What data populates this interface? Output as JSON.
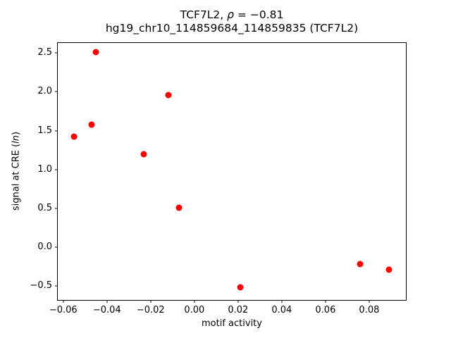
{
  "chart_data": {
    "type": "scatter",
    "title": "TCF7L2, ρ = −0.81",
    "title_parts": {
      "prefix": "TCF7L2, ",
      "rho": "ρ",
      "eq_suffix": " = −0.81"
    },
    "subtitle": "hg19_chr10_114859684_114859835 (TCF7L2)",
    "xlabel": "motif activity",
    "ylabel": "signal at CRE (ln)",
    "ylabel_parts": {
      "prefix": "signal at CRE (",
      "italic": "ln",
      "suffix": ")"
    },
    "marker": "circle",
    "marker_color": "#ff0000",
    "axis_color": "#000000",
    "background_color": "#ffffff",
    "grid": false,
    "legend": null,
    "xlim": [
      -0.0625,
      0.0968
    ],
    "ylim": [
      -0.68,
      2.63
    ],
    "x_ticks": [
      -0.06,
      -0.04,
      -0.02,
      0.0,
      0.02,
      0.04,
      0.06,
      0.08
    ],
    "x_tick_labels": [
      "−0.06",
      "−0.04",
      "−0.02",
      "0.00",
      "0.02",
      "0.04",
      "0.06",
      "0.08"
    ],
    "y_ticks": [
      -0.5,
      0.0,
      0.5,
      1.0,
      1.5,
      2.0,
      2.5
    ],
    "y_tick_labels": [
      "−0.5",
      "0.0",
      "0.5",
      "1.0",
      "1.5",
      "2.0",
      "2.5"
    ],
    "points": [
      {
        "x": -0.055,
        "y": 1.42
      },
      {
        "x": -0.047,
        "y": 1.58
      },
      {
        "x": -0.045,
        "y": 2.51
      },
      {
        "x": -0.023,
        "y": 1.2
      },
      {
        "x": -0.012,
        "y": 1.96
      },
      {
        "x": -0.007,
        "y": 0.51
      },
      {
        "x": 0.021,
        "y": -0.52
      },
      {
        "x": 0.076,
        "y": -0.22
      },
      {
        "x": 0.089,
        "y": -0.29
      }
    ]
  }
}
